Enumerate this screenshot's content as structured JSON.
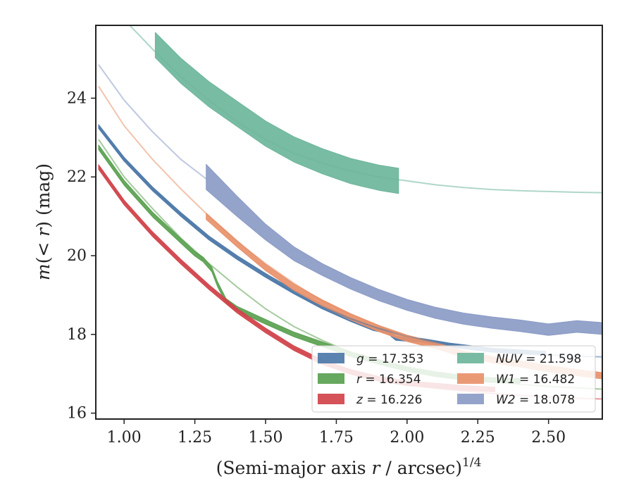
{
  "chart_data": {
    "type": "line",
    "xlabel": "(Semi-major axis r / arcsec)",
    "xlabel_var": "r",
    "xlabel_exponent": "1/4",
    "ylabel": "m(< r) (mag)",
    "xlim": [
      0.9,
      2.69
    ],
    "ylim": [
      25.85,
      15.85
    ],
    "y_inverted": true,
    "xticks": [
      1.0,
      1.25,
      1.5,
      1.75,
      2.0,
      2.25,
      2.5
    ],
    "xtick_labels": [
      "1.00",
      "1.25",
      "1.50",
      "1.75",
      "2.00",
      "2.25",
      "2.50"
    ],
    "yticks": [
      16,
      18,
      20,
      22,
      24
    ],
    "ytick_labels": [
      "16",
      "18",
      "20",
      "22",
      "24"
    ],
    "legend_position": "lower-right",
    "series": [
      {
        "name": "g = 17.353",
        "band": "g",
        "value": "17.353",
        "color": "#4c78a8",
        "model": [
          [
            0.91,
            23.25
          ],
          [
            1.0,
            22.45
          ],
          [
            1.1,
            21.7
          ],
          [
            1.2,
            21.05
          ],
          [
            1.3,
            20.45
          ],
          [
            1.4,
            19.95
          ],
          [
            1.5,
            19.5
          ],
          [
            1.6,
            19.05
          ],
          [
            1.7,
            18.7
          ],
          [
            1.8,
            18.4
          ],
          [
            1.9,
            18.15
          ],
          [
            2.0,
            17.95
          ],
          [
            2.1,
            17.8
          ],
          [
            2.2,
            17.68
          ],
          [
            2.3,
            17.6
          ],
          [
            2.4,
            17.53
          ],
          [
            2.5,
            17.48
          ],
          [
            2.6,
            17.45
          ],
          [
            2.69,
            17.43
          ]
        ],
        "data": [
          [
            0.91,
            23.28
          ],
          [
            1.0,
            22.45
          ],
          [
            1.1,
            21.7
          ],
          [
            1.2,
            21.05
          ],
          [
            1.3,
            20.45
          ],
          [
            1.4,
            19.95
          ],
          [
            1.5,
            19.5
          ],
          [
            1.6,
            19.08
          ],
          [
            1.7,
            18.7
          ],
          [
            1.8,
            18.38
          ],
          [
            1.88,
            18.15
          ],
          [
            1.93,
            18.08
          ],
          [
            1.96,
            17.9
          ],
          [
            2.05,
            17.85
          ],
          [
            2.15,
            17.73
          ],
          [
            2.3,
            17.6
          ],
          [
            2.49,
            17.52
          ]
        ],
        "data_err": 0.05
      },
      {
        "name": "r = 16.354",
        "band": "r",
        "value": "16.354",
        "color": "#59a14f",
        "model": [
          [
            0.91,
            22.95
          ],
          [
            1.0,
            22.0
          ],
          [
            1.1,
            21.2
          ],
          [
            1.2,
            20.45
          ],
          [
            1.3,
            19.8
          ],
          [
            1.4,
            19.2
          ],
          [
            1.5,
            18.65
          ],
          [
            1.6,
            18.2
          ],
          [
            1.7,
            17.85
          ],
          [
            1.8,
            17.55
          ],
          [
            1.9,
            17.3
          ],
          [
            2.0,
            17.13
          ],
          [
            2.1,
            16.98
          ],
          [
            2.2,
            16.87
          ],
          [
            2.3,
            16.8
          ],
          [
            2.4,
            16.73
          ],
          [
            2.5,
            16.68
          ],
          [
            2.6,
            16.64
          ],
          [
            2.69,
            16.61
          ]
        ],
        "data": [
          [
            0.91,
            22.75
          ],
          [
            1.0,
            21.85
          ],
          [
            1.1,
            21.05
          ],
          [
            1.2,
            20.38
          ],
          [
            1.25,
            20.05
          ],
          [
            1.28,
            19.9
          ],
          [
            1.31,
            19.65
          ],
          [
            1.33,
            19.28
          ],
          [
            1.36,
            18.85
          ],
          [
            1.4,
            18.65
          ],
          [
            1.5,
            18.32
          ],
          [
            1.6,
            18.0
          ],
          [
            1.7,
            17.75
          ],
          [
            1.8,
            17.5
          ],
          [
            1.9,
            17.3
          ],
          [
            2.0,
            17.12
          ],
          [
            2.1,
            16.99
          ],
          [
            2.2,
            16.9
          ],
          [
            2.3,
            16.84
          ],
          [
            2.4,
            16.82
          ]
        ],
        "data_err": 0.06
      },
      {
        "name": "z = 16.226",
        "band": "z",
        "value": "16.226",
        "color": "#d1434b",
        "model": [
          [
            0.91,
            22.25
          ],
          [
            1.0,
            21.35
          ],
          [
            1.1,
            20.55
          ],
          [
            1.2,
            19.85
          ],
          [
            1.3,
            19.2
          ],
          [
            1.4,
            18.6
          ],
          [
            1.5,
            18.1
          ],
          [
            1.6,
            17.65
          ],
          [
            1.7,
            17.3
          ],
          [
            1.8,
            17.05
          ],
          [
            1.9,
            16.85
          ],
          [
            2.0,
            16.72
          ],
          [
            2.1,
            16.63
          ],
          [
            2.2,
            16.56
          ],
          [
            2.3,
            16.5
          ],
          [
            2.4,
            16.45
          ],
          [
            2.5,
            16.41
          ],
          [
            2.6,
            16.38
          ],
          [
            2.69,
            16.36
          ]
        ],
        "data": [
          [
            0.91,
            22.25
          ],
          [
            1.0,
            21.35
          ],
          [
            1.1,
            20.55
          ],
          [
            1.2,
            19.85
          ],
          [
            1.3,
            19.2
          ],
          [
            1.4,
            18.6
          ],
          [
            1.5,
            18.1
          ],
          [
            1.6,
            17.65
          ],
          [
            1.7,
            17.3
          ],
          [
            1.8,
            17.05
          ],
          [
            1.9,
            16.87
          ],
          [
            2.0,
            16.76
          ],
          [
            2.1,
            16.7
          ],
          [
            2.2,
            16.64
          ],
          [
            2.31,
            16.6
          ]
        ],
        "data_err": 0.06
      },
      {
        "name": "NUV = 21.598",
        "band": "NUV",
        "value": "21.598",
        "color": "#6db69b",
        "model": [
          [
            1.02,
            25.85
          ],
          [
            1.1,
            25.25
          ],
          [
            1.2,
            24.55
          ],
          [
            1.3,
            23.95
          ],
          [
            1.4,
            23.4
          ],
          [
            1.5,
            22.95
          ],
          [
            1.6,
            22.6
          ],
          [
            1.7,
            22.35
          ],
          [
            1.8,
            22.15
          ],
          [
            1.9,
            22.0
          ],
          [
            2.0,
            21.9
          ],
          [
            2.1,
            21.8
          ],
          [
            2.2,
            21.73
          ],
          [
            2.3,
            21.68
          ],
          [
            2.4,
            21.65
          ],
          [
            2.5,
            21.63
          ],
          [
            2.6,
            21.61
          ],
          [
            2.69,
            21.6
          ]
        ],
        "data": [
          [
            1.11,
            25.35
          ],
          [
            1.2,
            24.7
          ],
          [
            1.3,
            24.1
          ],
          [
            1.4,
            23.6
          ],
          [
            1.5,
            23.1
          ],
          [
            1.6,
            22.7
          ],
          [
            1.7,
            22.4
          ],
          [
            1.8,
            22.15
          ],
          [
            1.9,
            21.98
          ],
          [
            1.97,
            21.9
          ]
        ],
        "data_err": 0.32
      },
      {
        "name": "W1 = 16.482",
        "band": "W1",
        "value": "16.482",
        "color": "#e8916a",
        "model": [
          [
            0.91,
            24.3
          ],
          [
            1.0,
            23.3
          ],
          [
            1.1,
            22.45
          ],
          [
            1.2,
            21.7
          ],
          [
            1.3,
            21.0
          ],
          [
            1.4,
            20.35
          ],
          [
            1.5,
            19.8
          ],
          [
            1.6,
            19.3
          ],
          [
            1.7,
            18.85
          ],
          [
            1.8,
            18.5
          ],
          [
            1.9,
            18.2
          ],
          [
            2.0,
            17.95
          ],
          [
            2.1,
            17.73
          ],
          [
            2.2,
            17.53
          ],
          [
            2.3,
            17.38
          ],
          [
            2.4,
            17.25
          ],
          [
            2.5,
            17.13
          ],
          [
            2.6,
            17.03
          ],
          [
            2.69,
            16.95
          ]
        ],
        "data": [
          [
            1.29,
            21.0
          ],
          [
            1.4,
            20.3
          ],
          [
            1.5,
            19.7
          ],
          [
            1.6,
            19.2
          ],
          [
            1.7,
            18.8
          ],
          [
            1.8,
            18.45
          ],
          [
            1.9,
            18.15
          ],
          [
            2.0,
            17.9
          ],
          [
            2.1,
            17.72
          ],
          [
            2.2,
            17.5
          ],
          [
            2.3,
            17.36
          ],
          [
            2.4,
            17.25
          ],
          [
            2.5,
            17.13
          ],
          [
            2.6,
            17.03
          ],
          [
            2.69,
            16.95
          ]
        ],
        "data_err": 0.08
      },
      {
        "name": "W2 = 18.078",
        "band": "W2",
        "value": "18.078",
        "color": "#8b9bc6",
        "model": [
          [
            0.91,
            24.85
          ],
          [
            1.0,
            23.95
          ],
          [
            1.1,
            23.15
          ],
          [
            1.2,
            22.45
          ],
          [
            1.29,
            21.95
          ]
        ],
        "data": [
          [
            1.29,
            22.0
          ],
          [
            1.4,
            21.25
          ],
          [
            1.5,
            20.6
          ],
          [
            1.6,
            20.05
          ],
          [
            1.7,
            19.65
          ],
          [
            1.8,
            19.3
          ],
          [
            1.9,
            19.0
          ],
          [
            2.0,
            18.75
          ],
          [
            2.1,
            18.55
          ],
          [
            2.2,
            18.4
          ],
          [
            2.3,
            18.3
          ],
          [
            2.4,
            18.22
          ],
          [
            2.5,
            18.12
          ],
          [
            2.6,
            18.2
          ],
          [
            2.69,
            18.15
          ]
        ],
        "data_err_profile": [
          [
            1.29,
            0.32
          ],
          [
            1.5,
            0.2
          ],
          [
            1.7,
            0.15
          ],
          [
            2.0,
            0.14
          ],
          [
            2.69,
            0.15
          ]
        ]
      }
    ]
  }
}
